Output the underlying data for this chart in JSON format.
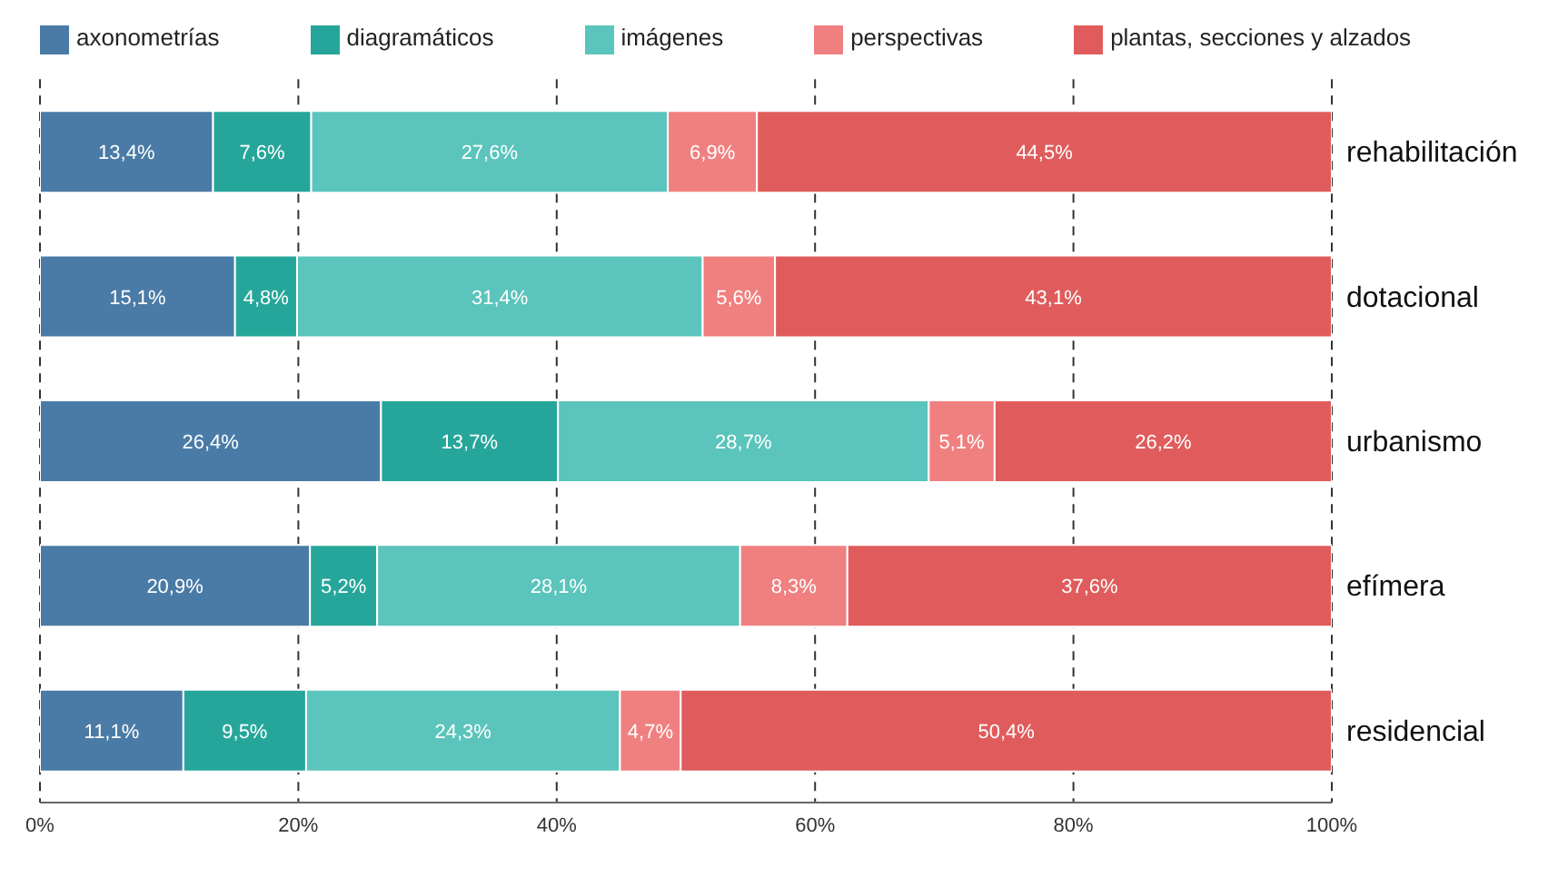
{
  "chart_data": {
    "type": "bar",
    "orientation": "horizontal",
    "stacked": true,
    "categories": [
      "rehabilitación",
      "dotacional",
      "urbanismo",
      "efímera",
      "residencial"
    ],
    "series": [
      {
        "name": "axonometrías",
        "color": "#4a7ba6",
        "values": [
          13.4,
          15.1,
          26.4,
          20.9,
          11.1
        ],
        "value_labels": [
          "13,4%",
          "15,1%",
          "26,4%",
          "20,9%",
          "11,1%"
        ]
      },
      {
        "name": "diagramáticos",
        "color": "#26a69a",
        "values": [
          7.6,
          4.8,
          13.7,
          5.2,
          9.5
        ],
        "value_labels": [
          "7,6%",
          "4,8%",
          "13,7%",
          "5,2%",
          "9,5%"
        ]
      },
      {
        "name": "imágenes",
        "color": "#5bc4bc",
        "values": [
          27.6,
          31.4,
          28.7,
          28.1,
          24.3
        ],
        "value_labels": [
          "27,6%",
          "31,4%",
          "28,7%",
          "28,1%",
          "24,3%"
        ]
      },
      {
        "name": "perspectivas",
        "color": "#f08080",
        "values": [
          6.9,
          5.6,
          5.1,
          8.3,
          4.7
        ],
        "value_labels": [
          "6,9%",
          "5,6%",
          "5,1%",
          "8,3%",
          "4,7%"
        ]
      },
      {
        "name": "plantas, secciones y alzados",
        "color": "#e05c5c",
        "values": [
          44.5,
          43.1,
          26.2,
          37.6,
          50.4
        ],
        "value_labels": [
          "44,5%",
          "43,1%",
          "26,2%",
          "37,6%",
          "50,4%"
        ]
      }
    ],
    "xlim": [
      0,
      100
    ],
    "xticks": [
      {
        "value": 0,
        "label": "0%"
      },
      {
        "value": 20,
        "label": "20%"
      },
      {
        "value": 40,
        "label": "40%"
      },
      {
        "value": 60,
        "label": "60%"
      },
      {
        "value": 80,
        "label": "80%"
      },
      {
        "value": 100,
        "label": "100%"
      }
    ],
    "grid": "x",
    "legend": "top"
  }
}
